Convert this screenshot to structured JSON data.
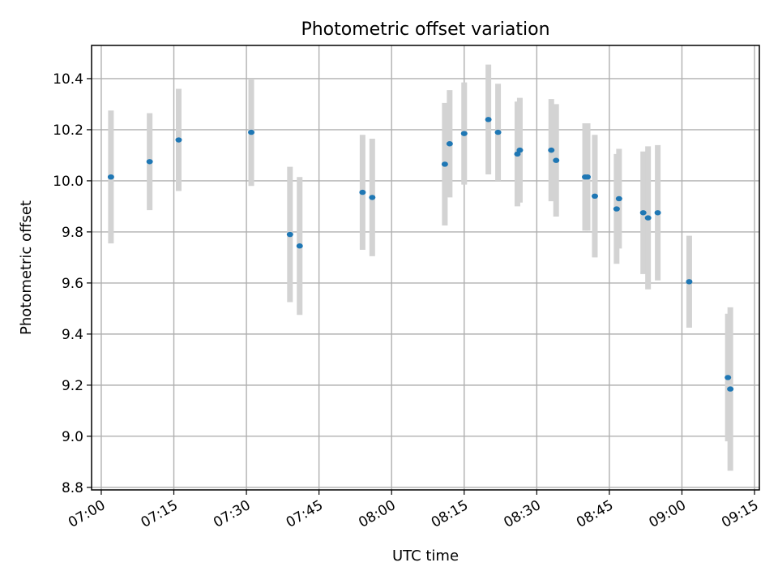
{
  "chart_data": {
    "type": "scatter",
    "title": "Photometric offset variation",
    "xlabel": "UTC time",
    "ylabel": "Photometric offset",
    "x_axis": {
      "kind": "time",
      "range": [
        "06:58",
        "09:16"
      ],
      "ticks": [
        "07:00",
        "07:15",
        "07:30",
        "07:45",
        "08:00",
        "08:15",
        "08:30",
        "08:45",
        "09:00",
        "09:15"
      ]
    },
    "y_axis": {
      "range": [
        8.79,
        10.53
      ],
      "ticks": [
        "8.8",
        "9.0",
        "9.2",
        "9.4",
        "9.6",
        "9.8",
        "10.0",
        "10.2",
        "10.4"
      ]
    },
    "grid": true,
    "colors": {
      "point": "#1f77b4",
      "errorbar": "#d3d3d3",
      "grid": "#b0b0b0"
    },
    "series": [
      {
        "points": [
          {
            "x": "07:02",
            "y": 10.015,
            "err": 0.26
          },
          {
            "x": "07:10",
            "y": 10.075,
            "err": 0.19
          },
          {
            "x": "07:16",
            "y": 10.16,
            "err": 0.2
          },
          {
            "x": "07:31",
            "y": 10.19,
            "err": 0.21
          },
          {
            "x": "07:39",
            "y": 9.79,
            "err": 0.265
          },
          {
            "x": "07:41",
            "y": 9.745,
            "err": 0.27
          },
          {
            "x": "07:54",
            "y": 9.955,
            "err": 0.225
          },
          {
            "x": "07:56",
            "y": 9.935,
            "err": 0.23
          },
          {
            "x": "08:11",
            "y": 10.065,
            "err": 0.24
          },
          {
            "x": "08:12",
            "y": 10.145,
            "err": 0.21
          },
          {
            "x": "08:15",
            "y": 10.185,
            "err": 0.2
          },
          {
            "x": "08:20",
            "y": 10.24,
            "err": 0.215
          },
          {
            "x": "08:22",
            "y": 10.19,
            "err": 0.19
          },
          {
            "x": "08:26",
            "y": 10.105,
            "err": 0.205
          },
          {
            "x": "08:26.5",
            "y": 10.12,
            "err": 0.205
          },
          {
            "x": "08:33",
            "y": 10.12,
            "err": 0.2
          },
          {
            "x": "08:34",
            "y": 10.08,
            "err": 0.22
          },
          {
            "x": "08:40",
            "y": 10.015,
            "err": 0.21
          },
          {
            "x": "08:40.5",
            "y": 10.015,
            "err": 0.21
          },
          {
            "x": "08:42",
            "y": 9.94,
            "err": 0.24
          },
          {
            "x": "08:46.5",
            "y": 9.89,
            "err": 0.215
          },
          {
            "x": "08:47",
            "y": 9.93,
            "err": 0.195
          },
          {
            "x": "08:52",
            "y": 9.875,
            "err": 0.24
          },
          {
            "x": "08:53",
            "y": 9.855,
            "err": 0.28
          },
          {
            "x": "08:55",
            "y": 9.875,
            "err": 0.265
          },
          {
            "x": "09:01.5",
            "y": 9.605,
            "err": 0.18
          },
          {
            "x": "09:09.5",
            "y": 9.23,
            "err": 0.25
          },
          {
            "x": "09:10",
            "y": 9.185,
            "err": 0.32
          }
        ]
      }
    ]
  }
}
